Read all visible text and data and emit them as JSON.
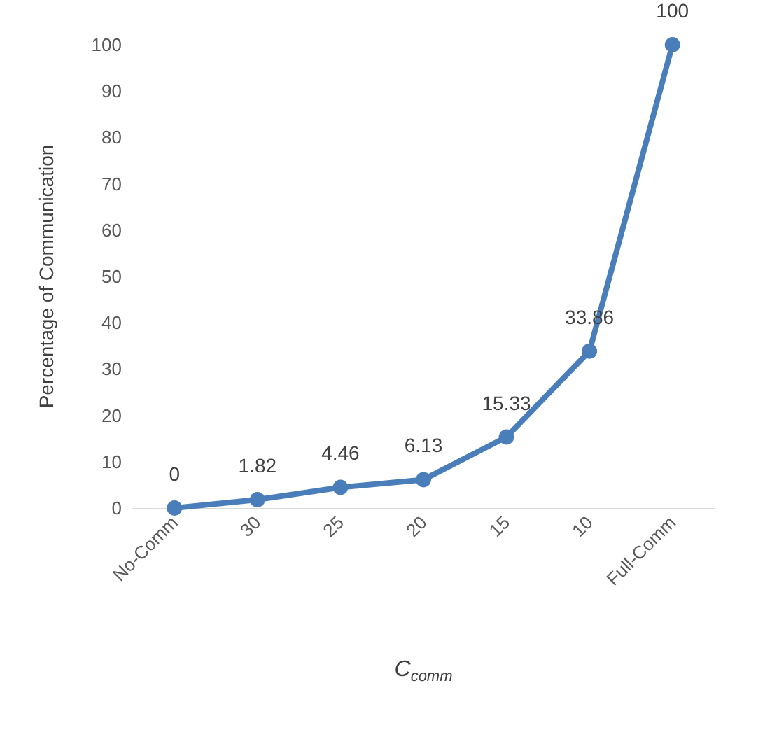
{
  "chart_data": {
    "type": "line",
    "xlabel": "C$_{comm}$",
    "ylabel": "Percentage of Communication",
    "categories": [
      "No-Comm",
      "30",
      "25",
      "20",
      "15",
      "10",
      "Full-Comm"
    ],
    "series": [
      {
        "color": "#4a7ebb",
        "values": [
          0,
          1.82,
          4.46,
          6.13,
          15.33,
          33.86,
          100
        ]
      }
    ],
    "ylim": [
      0,
      100
    ],
    "yticks": [
      0,
      10,
      20,
      30,
      40,
      50,
      60,
      70,
      80,
      90,
      100
    ],
    "data_labels": true,
    "marker": "circle",
    "line_style": "solid",
    "grid": false
  }
}
